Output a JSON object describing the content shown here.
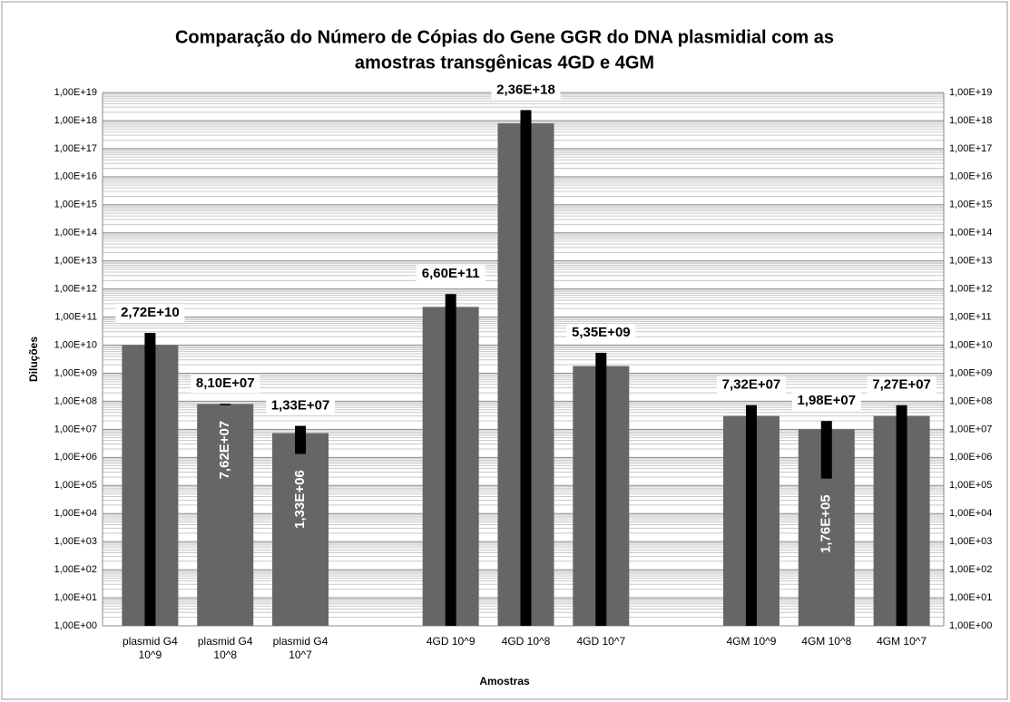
{
  "chart_data": {
    "type": "bar",
    "title": [
      "Comparação do Número de Cópias do Gene GGR do DNA plasmidial com as",
      "amostras transgênicas 4GD e 4GM"
    ],
    "xlabel": "Amostras",
    "ylabel": "Diluções",
    "categories": [
      "plasmid G4 10^9",
      "plasmid G4 10^8",
      "plasmid G4 10^7",
      null,
      "4GD 10^9",
      "4GD 10^8",
      "4GD 10^7",
      null,
      "4GM 10^9",
      "4GM 10^8",
      "4GM 10^7"
    ],
    "series": [
      {
        "color": "#666666",
        "values": [
          10000000000,
          80000000,
          7400000,
          null,
          230000000000,
          800000000000000000,
          1800000000,
          null,
          30000000,
          10000000,
          30000000
        ]
      },
      {
        "color": "#000000",
        "high": [
          27200000000,
          81000000,
          13300000,
          null,
          660000000000,
          2360000000000000000,
          5350000000,
          null,
          73200000,
          19800000,
          72700000
        ],
        "high_labels": [
          "2,72E+10",
          "8,10E+07",
          "1,33E+07",
          null,
          "6,60E+11",
          "2,36E+18",
          "5,35E+09",
          null,
          "7,32E+07",
          "1,98E+07",
          "7,27E+07"
        ],
        "low": [
          null,
          76200000,
          1330000,
          null,
          null,
          null,
          null,
          null,
          null,
          176000,
          null
        ],
        "low_labels": [
          null,
          "7,62E+07",
          "1,33E+06",
          null,
          null,
          null,
          null,
          null,
          null,
          "1,76E+05",
          null
        ]
      }
    ],
    "log_scale": true,
    "grid": true,
    "ylim": [
      1,
      10000000000000000000
    ],
    "yticks": [
      {
        "value": 1,
        "label": "1,00E+00"
      },
      {
        "value": 10,
        "label": "1,00E+01"
      },
      {
        "value": 100,
        "label": "1,00E+02"
      },
      {
        "value": 1000,
        "label": "1,00E+03"
      },
      {
        "value": 10000,
        "label": "1,00E+04"
      },
      {
        "value": 100000,
        "label": "1,00E+05"
      },
      {
        "value": 1000000,
        "label": "1,00E+06"
      },
      {
        "value": 10000000,
        "label": "1,00E+07"
      },
      {
        "value": 100000000,
        "label": "1,00E+08"
      },
      {
        "value": 1000000000,
        "label": "1,00E+09"
      },
      {
        "value": 10000000000,
        "label": "1,00E+10"
      },
      {
        "value": 100000000000,
        "label": "1,00E+11"
      },
      {
        "value": 1000000000000,
        "label": "1,00E+12"
      },
      {
        "value": 10000000000000,
        "label": "1,00E+13"
      },
      {
        "value": 100000000000000,
        "label": "1,00E+14"
      },
      {
        "value": 1000000000000000,
        "label": "1,00E+15"
      },
      {
        "value": 10000000000000000,
        "label": "1,00E+16"
      },
      {
        "value": 100000000000000000,
        "label": "1,00E+17"
      },
      {
        "value": 1000000000000000000,
        "label": "1,00E+18"
      },
      {
        "value": 10000000000000000000,
        "label": "1,00E+19"
      }
    ]
  }
}
